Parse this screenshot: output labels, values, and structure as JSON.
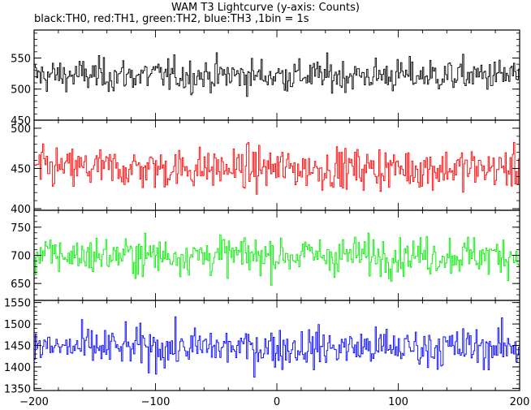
{
  "chart_data": {
    "type": "line",
    "title": "WAM T3 Lightcurve (y-axis: Counts)",
    "subtitle": "black:TH0, red:TH1, green:TH2, blue:TH3 ,1bin = 1s",
    "xlim": [
      -200,
      200
    ],
    "x_ticks": [
      -200,
      -100,
      0,
      100,
      200
    ],
    "x_tick_labels": [
      "−200",
      "−100",
      "0",
      "100",
      "200"
    ],
    "bin_seconds": 1,
    "panels": [
      {
        "name": "TH0",
        "color": "#000000",
        "ylim": [
          450,
          595
        ],
        "y_ticks": [
          450,
          500,
          550
        ],
        "y_tick_labels": [
          "450",
          "500",
          "550"
        ],
        "mean": 522,
        "noise": 22
      },
      {
        "name": "TH1",
        "color": "#ff0000",
        "ylim": [
          398,
          510
        ],
        "y_ticks": [
          400,
          450,
          500
        ],
        "y_tick_labels": [
          "400",
          "450",
          "500"
        ],
        "mean": 450,
        "noise": 21
      },
      {
        "name": "TH2",
        "color": "#00ee00",
        "ylim": [
          620,
          780
        ],
        "y_ticks": [
          650,
          700,
          750
        ],
        "y_tick_labels": [
          "650",
          "700",
          "750"
        ],
        "mean": 700,
        "noise": 28
      },
      {
        "name": "TH3",
        "color": "#0000ff",
        "ylim": [
          1345,
          1555
        ],
        "y_ticks": [
          1350,
          1400,
          1450,
          1500,
          1550
        ],
        "y_tick_labels": [
          "1350",
          "1400",
          "1450",
          "1500",
          "1550"
        ],
        "mean": 1445,
        "noise": 38
      }
    ]
  }
}
